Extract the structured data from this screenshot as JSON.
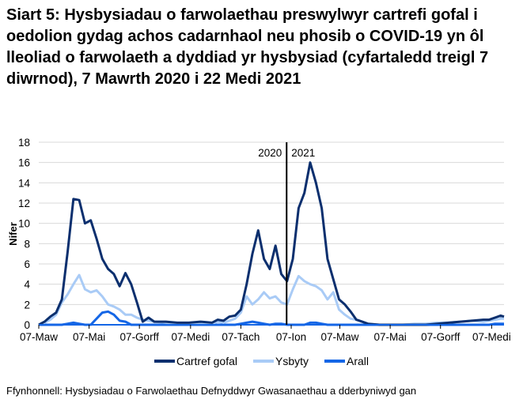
{
  "title": "Siart 5: Hysbysiadau o farwolaethau preswylwyr cartrefi gofal i oedolion gydag achos cadarnhaol neu phosib o COVID-19 yn ôl lleoliad o farwolaeth a dyddiad yr hysbysiad (cyfartaledd treigl 7 diwrnod), 7 Mawrth 2020 i 22 Medi 2021",
  "source": "Ffynhonnell: Hysbysiadau o Farwolaethau Defnyddwyr Gwasanaethau a dderbyniwyd gan",
  "colors": {
    "cartref_gofal": "#0b2f6e",
    "ysbyty": "#a9cbf6",
    "arall": "#1466e6",
    "grid": "#d9d9d9",
    "divider": "#000000"
  },
  "chart_data": {
    "type": "line",
    "title": "Siart 5: Hysbysiadau o farwolaethau preswylwyr cartrefi gofal i oedolion gydag achos cadarnhaol neu phosib o COVID-19 yn ôl lleoliad o farwolaeth a dyddiad yr hysbysiad (cyfartaledd treigl 7 diwrnod), 7 Mawrth 2020 i 22 Medi 2021",
    "xlabel": "",
    "ylabel": "Nifer",
    "ylim": [
      0,
      18
    ],
    "yticks": [
      0,
      2,
      4,
      6,
      8,
      10,
      12,
      14,
      16,
      18
    ],
    "grid": true,
    "legend_position": "bottom",
    "x_tick_labels": [
      "07-Maw",
      "07-Mai",
      "07-Gorff",
      "07-Medi",
      "07-Tach",
      "07-Ion",
      "07-Maw",
      "07-Mai",
      "07-Gorff",
      "07-Medi"
    ],
    "x_tick_days": [
      0,
      61,
      122,
      184,
      245,
      306,
      365,
      426,
      487,
      549
    ],
    "x_range_days": [
      0,
      564
    ],
    "annotations": [
      {
        "type": "vline",
        "day": 300,
        "label_left": "2020",
        "label_right": "2021"
      }
    ],
    "x_days": [
      0,
      7,
      14,
      21,
      28,
      35,
      42,
      49,
      56,
      63,
      70,
      77,
      84,
      91,
      98,
      105,
      112,
      119,
      126,
      133,
      140,
      154,
      168,
      182,
      196,
      210,
      217,
      224,
      231,
      238,
      245,
      252,
      259,
      266,
      273,
      280,
      287,
      294,
      301,
      308,
      315,
      322,
      329,
      336,
      343,
      350,
      357,
      364,
      371,
      378,
      385,
      392,
      399,
      413,
      427,
      441,
      455,
      469,
      483,
      497,
      511,
      525,
      539,
      546,
      553,
      560,
      564
    ],
    "series": [
      {
        "name": "Cartref gofal",
        "values": [
          0,
          0.3,
          0.8,
          1.2,
          2.5,
          7.2,
          12.4,
          12.3,
          10.0,
          10.3,
          8.5,
          6.5,
          5.5,
          5.0,
          3.8,
          5.1,
          4.0,
          2.2,
          0.3,
          0.7,
          0.3,
          0.3,
          0.2,
          0.2,
          0.3,
          0.2,
          0.5,
          0.4,
          0.8,
          0.9,
          1.5,
          4.0,
          7.0,
          9.3,
          6.5,
          5.5,
          7.8,
          5.0,
          4.3,
          6.5,
          11.5,
          13.0,
          16.0,
          14.0,
          11.5,
          6.5,
          4.5,
          2.5,
          2.0,
          1.3,
          0.5,
          0.3,
          0.1,
          0,
          0,
          0,
          0,
          0,
          0.1,
          0.2,
          0.3,
          0.4,
          0.5,
          0.5,
          0.7,
          0.9,
          0.8
        ]
      },
      {
        "name": "Ysbyty",
        "values": [
          0,
          0.2,
          0.5,
          1.0,
          2.2,
          3.0,
          4.0,
          4.9,
          3.5,
          3.2,
          3.4,
          2.8,
          2.0,
          1.8,
          1.5,
          1.0,
          1.0,
          0.7,
          0.5,
          0.4,
          0.3,
          0.2,
          0.1,
          0.1,
          0.2,
          0.1,
          0.3,
          0.2,
          0.4,
          0.6,
          1.2,
          2.8,
          2.0,
          2.5,
          3.2,
          2.6,
          2.8,
          2.2,
          2.0,
          3.5,
          4.8,
          4.3,
          4.0,
          3.8,
          3.4,
          2.5,
          3.2,
          1.5,
          1.0,
          0.6,
          0.5,
          0.3,
          0.1,
          0,
          0,
          0,
          0.1,
          0.1,
          0.2,
          0.2,
          0.3,
          0.4,
          0.3,
          0.4,
          0.5,
          0.6,
          0.6
        ]
      },
      {
        "name": "Arall",
        "values": [
          0,
          0,
          0,
          0,
          0,
          0.1,
          0.2,
          0.1,
          0,
          0,
          0.6,
          1.2,
          1.3,
          1.0,
          0.4,
          0.3,
          0,
          0,
          0,
          0,
          0,
          0,
          0,
          0,
          0,
          0,
          0,
          0,
          0,
          0,
          0.1,
          0.2,
          0.3,
          0.2,
          0.1,
          0,
          0.1,
          0.1,
          0,
          0,
          0,
          0,
          0.2,
          0.2,
          0.1,
          0,
          0,
          0,
          0,
          0,
          0,
          0,
          0,
          0,
          0,
          0,
          0,
          0,
          0,
          0,
          0,
          0,
          0,
          0,
          0.1,
          0.1,
          0.1
        ]
      }
    ]
  }
}
